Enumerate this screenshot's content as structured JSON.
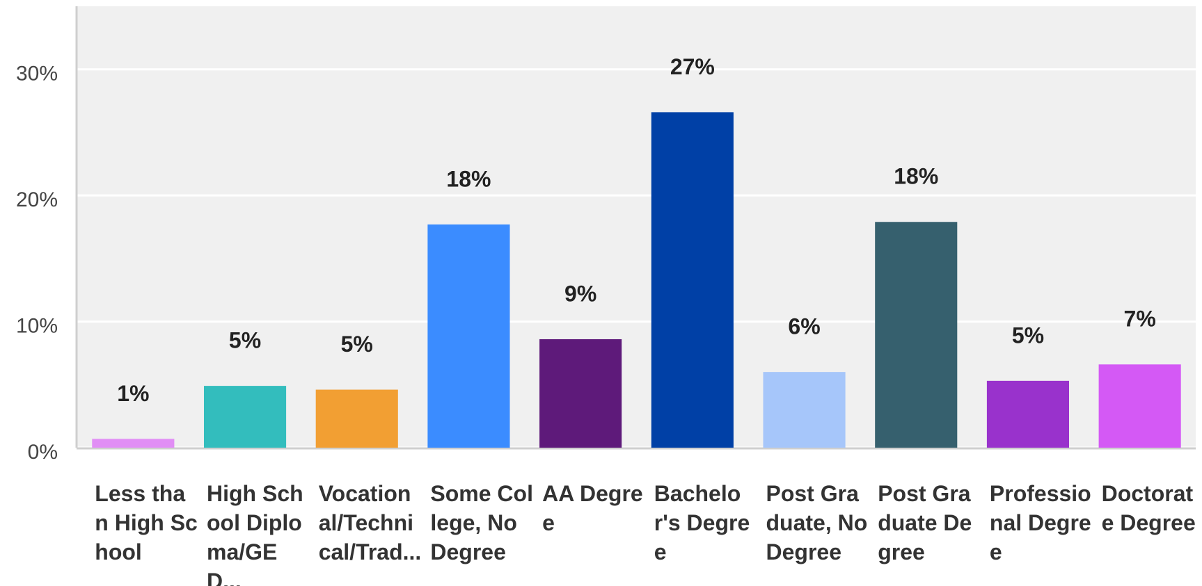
{
  "chart_data": {
    "type": "bar",
    "categories": [
      "Less than High School",
      "High School Diploma/GED...",
      "Vocational/Technical/Trad...",
      "Some College, No Degree",
      "AA Degree",
      "Bachelor's Degree",
      "Post Graduate, No Degree",
      "Post Graduate Degree",
      "Professional Degree",
      "Doctorate Degree"
    ],
    "values": [
      0.7,
      4.9,
      4.6,
      17.7,
      8.6,
      26.6,
      6.0,
      17.9,
      5.3,
      6.6
    ],
    "value_labels": [
      "1%",
      "5%",
      "5%",
      "18%",
      "9%",
      "27%",
      "6%",
      "18%",
      "5%",
      "7%"
    ],
    "colors": [
      "#e18ef5",
      "#33bdbd",
      "#f29f33",
      "#3b8cff",
      "#5e1a7a",
      "#0040a6",
      "#a6c6fa",
      "#36606e",
      "#9932cc",
      "#d459f5"
    ],
    "ylim": [
      0,
      35
    ],
    "yticks": [
      {
        "value": 0,
        "label": "0%"
      },
      {
        "value": 10,
        "label": "10%"
      },
      {
        "value": 20,
        "label": "20%"
      },
      {
        "value": 30,
        "label": "30%"
      }
    ],
    "grid": true
  }
}
